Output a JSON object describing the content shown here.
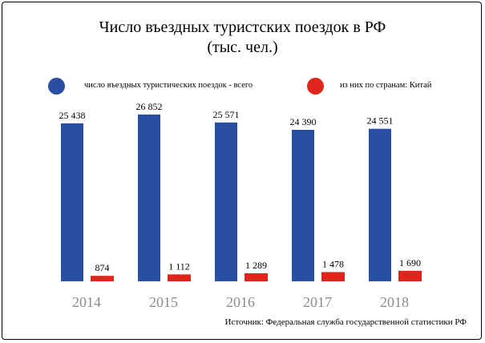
{
  "title_line1": "Число въездных туристских поездок в РФ",
  "title_line2": "(тыс. чел.)",
  "source": "Источник: Федеральная служба государственной статистики РФ",
  "colors": {
    "series1": "#2a4ea2",
    "series2": "#e0261c",
    "axis_text": "#8c8c8c"
  },
  "chart_data": {
    "type": "bar",
    "title": "Число въездных туристских поездок в РФ (тыс. чел.)",
    "categories": [
      "2014",
      "2015",
      "2016",
      "2017",
      "2018"
    ],
    "series": [
      {
        "name": "число въездных туристических поездок - всего",
        "values": [
          25438,
          26852,
          25571,
          24390,
          24551
        ],
        "labels": [
          "25 438",
          "26 852",
          "25 571",
          "24 390",
          "24 551"
        ]
      },
      {
        "name": "из них по странам: Китай",
        "values": [
          874,
          1112,
          1289,
          1478,
          1690
        ],
        "labels": [
          "874",
          "1 112",
          "1 289",
          "1 478",
          "1 690"
        ]
      }
    ],
    "ylim": [
      0,
      28000
    ],
    "legend": "top",
    "grid": false
  }
}
